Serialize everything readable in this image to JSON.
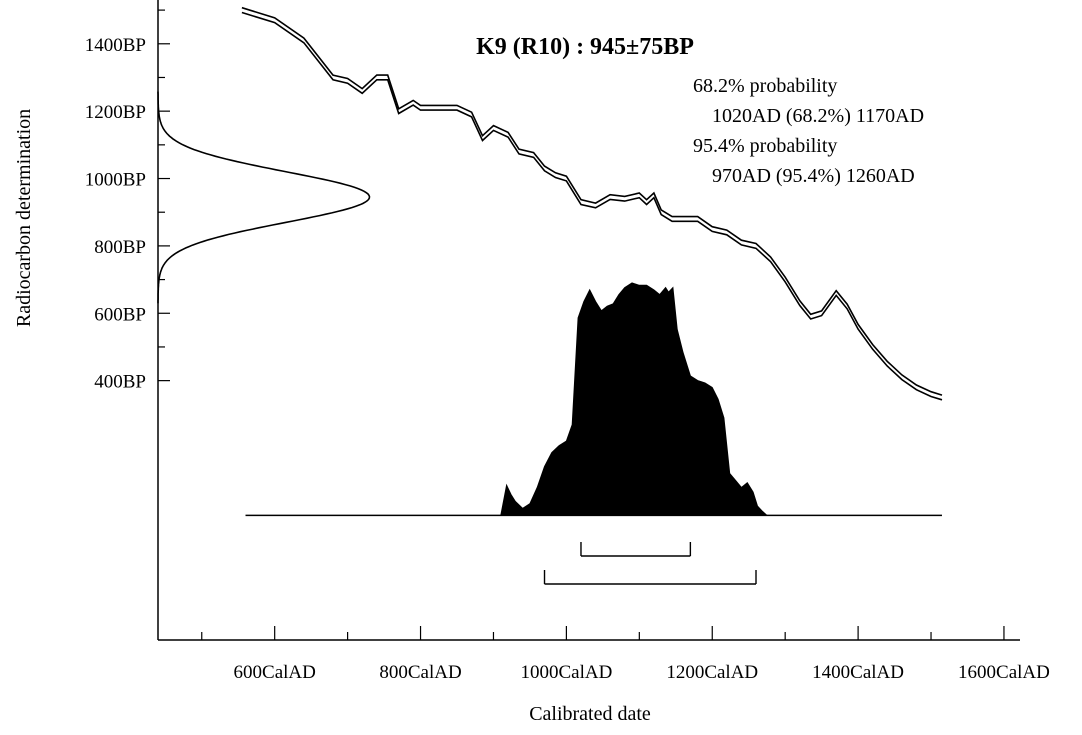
{
  "chart_data": {
    "type": "area",
    "title": "K9 (R10) : 945±75BP",
    "xlabel": "Calibrated date",
    "ylabel": "Radiocarbon determination",
    "x_ticks": [
      {
        "value": 600,
        "label": "600CalAD"
      },
      {
        "value": 800,
        "label": "800CalAD"
      },
      {
        "value": 1000,
        "label": "1000CalAD"
      },
      {
        "value": 1200,
        "label": "1200CalAD"
      },
      {
        "value": 1400,
        "label": "1400CalAD"
      },
      {
        "value": 1600,
        "label": "1600CalAD"
      }
    ],
    "y_ticks": [
      {
        "value": 400,
        "label": "400BP"
      },
      {
        "value": 600,
        "label": "600BP"
      },
      {
        "value": 800,
        "label": "800BP"
      },
      {
        "value": 1000,
        "label": "1000BP"
      },
      {
        "value": 1200,
        "label": "1200BP"
      },
      {
        "value": 1400,
        "label": "1400BP"
      }
    ],
    "xlim": [
      440,
      1622
    ],
    "ylim": [
      -370,
      1530
    ],
    "annotations": [
      "68.2% probability",
      "1020AD (68.2%) 1170AD",
      "95.4% probability",
      "970AD (95.4%) 1260AD"
    ],
    "calibration_curve": {
      "x": [
        555,
        600,
        640,
        680,
        700,
        720,
        740,
        755,
        770,
        790,
        800,
        820,
        850,
        870,
        885,
        900,
        920,
        935,
        955,
        970,
        985,
        1000,
        1020,
        1040,
        1060,
        1080,
        1100,
        1110,
        1120,
        1130,
        1145,
        1160,
        1180,
        1200,
        1220,
        1240,
        1260,
        1280,
        1300,
        1320,
        1335,
        1350,
        1370,
        1385,
        1400,
        1420,
        1440,
        1460,
        1480,
        1500,
        1515
      ],
      "y": [
        1500,
        1470,
        1410,
        1300,
        1290,
        1260,
        1300,
        1300,
        1200,
        1225,
        1210,
        1210,
        1210,
        1190,
        1120,
        1150,
        1130,
        1080,
        1070,
        1030,
        1010,
        1000,
        930,
        920,
        945,
        940,
        950,
        930,
        950,
        900,
        880,
        880,
        880,
        850,
        840,
        810,
        800,
        760,
        700,
        630,
        590,
        600,
        660,
        620,
        560,
        500,
        450,
        410,
        380,
        360,
        350
      ],
      "band_width": 14
    },
    "radiocarbon_distribution": {
      "mean": 945,
      "sd": 75,
      "x_base": 440,
      "x_peak": 730
    },
    "calibrated_distribution": {
      "x": [
        910,
        918,
        924,
        930,
        940,
        950,
        960,
        970,
        980,
        990,
        1000,
        1008,
        1016,
        1024,
        1032,
        1040,
        1048,
        1056,
        1064,
        1072,
        1080,
        1090,
        1100,
        1110,
        1120,
        1128,
        1136,
        1140,
        1146,
        1152,
        1160,
        1170,
        1180,
        1190,
        1200,
        1208,
        1216,
        1224,
        1232,
        1240,
        1248,
        1256,
        1262,
        1268,
        1275
      ],
      "y": [
        0,
        0.13,
        0.09,
        0.06,
        0.03,
        0.05,
        0.12,
        0.21,
        0.27,
        0.3,
        0.32,
        0.39,
        0.85,
        0.92,
        0.97,
        0.92,
        0.88,
        0.9,
        0.91,
        0.95,
        0.98,
        1.0,
        0.99,
        0.99,
        0.97,
        0.95,
        0.98,
        0.96,
        0.98,
        0.8,
        0.7,
        0.6,
        0.58,
        0.57,
        0.55,
        0.5,
        0.42,
        0.18,
        0.15,
        0.12,
        0.14,
        0.1,
        0.04,
        0.02,
        0.0
      ],
      "x_range": [
        560,
        1515
      ],
      "y_max_value": 690
    },
    "ranges": [
      {
        "name": "68.2%",
        "start": 1020,
        "end": 1170
      },
      {
        "name": "95.4%",
        "start": 970,
        "end": 1260
      }
    ]
  }
}
